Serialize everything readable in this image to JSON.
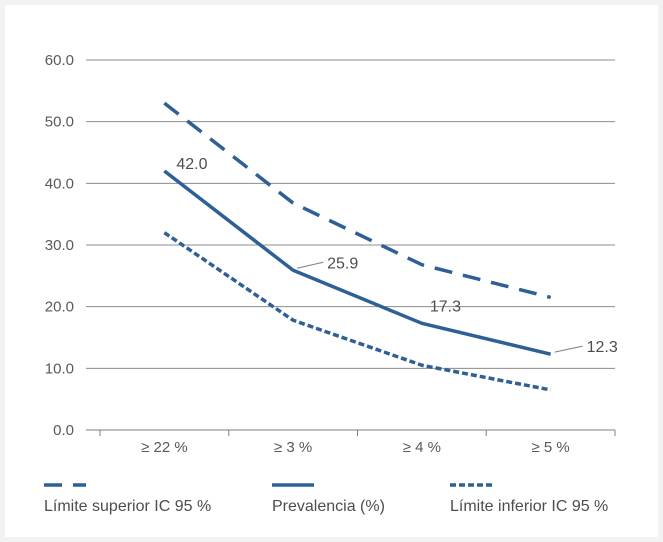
{
  "chart_data": {
    "type": "line",
    "categories": [
      "≥  22 %",
      "≥  3 %",
      "≥  4 %",
      "≥  5 %"
    ],
    "ylim": [
      0,
      60
    ],
    "yticks": [
      0,
      10,
      20,
      30,
      40,
      50,
      60
    ],
    "ytick_labels": [
      "0.0",
      "10.0",
      "20.0",
      "30.0",
      "40.0",
      "50.0",
      "60.0"
    ],
    "grid": true,
    "series": [
      {
        "name": "Límite superior IC 95 %",
        "values": [
          53.0,
          36.8,
          26.8,
          21.5
        ],
        "style": "dashed",
        "color": "#2e5f95"
      },
      {
        "name": "Prevalencia (%)",
        "values": [
          42.0,
          25.9,
          17.3,
          12.3
        ],
        "style": "solid",
        "color": "#2e5f95"
      },
      {
        "name": "Límite inferior IC 95 %",
        "values": [
          32.0,
          17.8,
          10.5,
          6.5
        ],
        "style": "dotted",
        "color": "#2e5f95"
      }
    ],
    "data_labels": [
      "42.0",
      "25.9",
      "17.3",
      "12.3"
    ],
    "legend_position": "bottom"
  }
}
